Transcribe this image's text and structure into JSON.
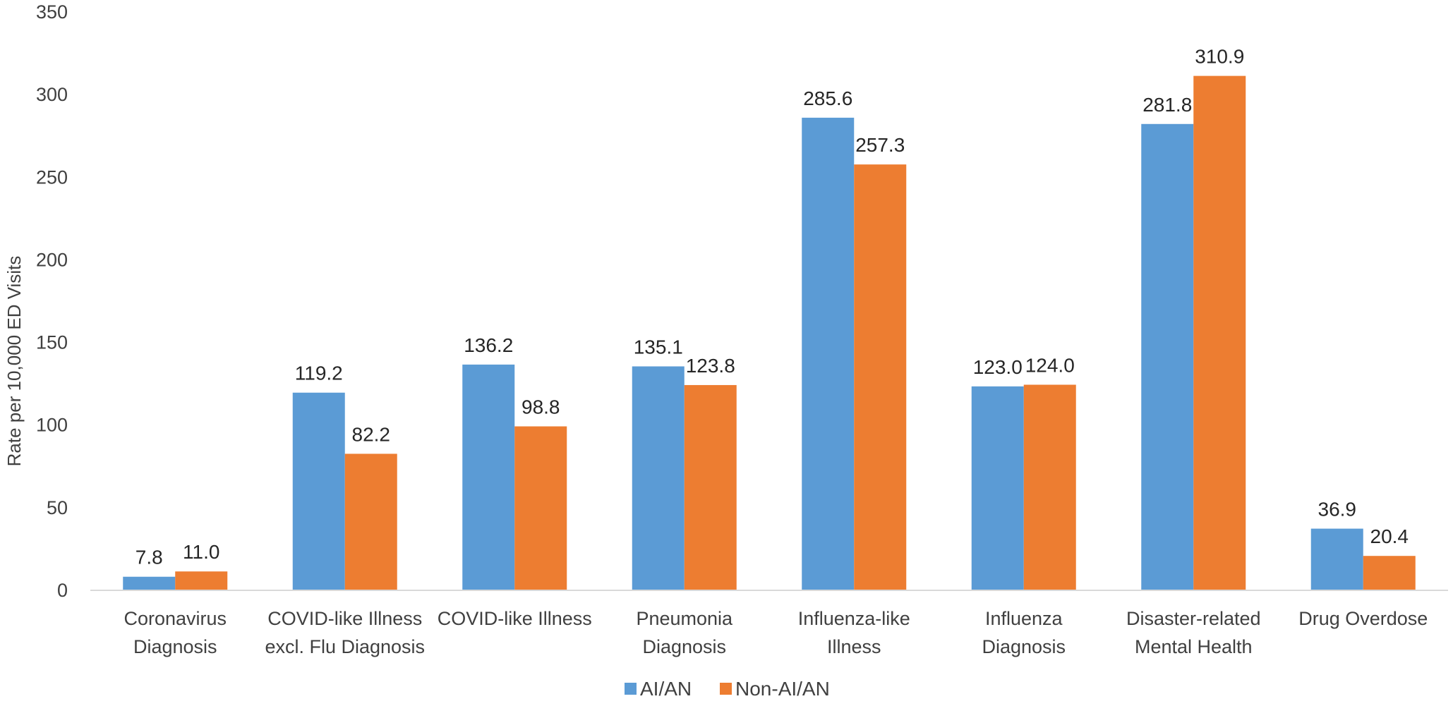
{
  "chart_data": {
    "type": "bar",
    "title": "",
    "xlabel": "",
    "ylabel": "Rate per 10,000 ED Visits",
    "ylim": [
      0,
      350
    ],
    "yticks": [
      0,
      50,
      100,
      150,
      200,
      250,
      300,
      350
    ],
    "grid": false,
    "legend_position": "bottom",
    "categories": [
      [
        "Coronavirus",
        "Diagnosis"
      ],
      [
        "COVID-like Illness",
        "excl. Flu Diagnosis"
      ],
      [
        "COVID-like Illness"
      ],
      [
        "Pneumonia",
        "Diagnosis"
      ],
      [
        "Influenza-like",
        "Illness"
      ],
      [
        "Influenza",
        "Diagnosis"
      ],
      [
        "Disaster-related",
        "Mental Health"
      ],
      [
        "Drug Overdose"
      ]
    ],
    "series": [
      {
        "name": "AI/AN",
        "color": "#5B9BD5",
        "values": [
          7.8,
          119.2,
          136.2,
          135.1,
          285.6,
          123.0,
          281.8,
          36.9
        ],
        "labels": [
          "7.8",
          "119.2",
          "136.2",
          "135.1",
          "285.6",
          "123.0",
          "281.8",
          "36.9"
        ]
      },
      {
        "name": "Non-AI/AN",
        "color": "#ED7D31",
        "values": [
          11.0,
          82.2,
          98.8,
          123.8,
          257.3,
          124.0,
          310.9,
          20.4
        ],
        "labels": [
          "11.0",
          "82.2",
          "98.8",
          "123.8",
          "257.3",
          "124.0",
          "310.9",
          "20.4"
        ]
      }
    ]
  }
}
